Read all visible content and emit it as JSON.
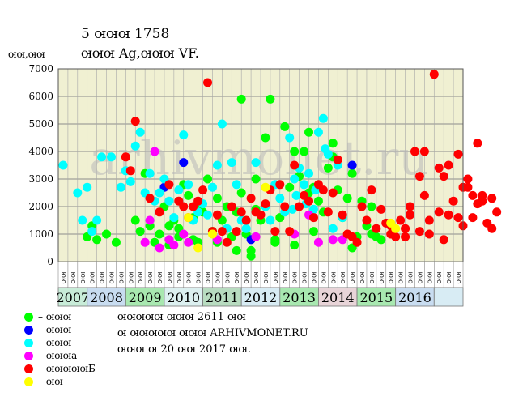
{
  "header": {
    "title_line1": "5 ꙕꙕꙕ 1758",
    "title_line2": "ꙕꙕꙕ Ag,ꙕꙕꙕ VF.",
    "y_unit": "ꙕꙕ,ꙕꙕ"
  },
  "watermark": "arhivmonet.ru",
  "legend": [
    {
      "label": "– ꙕꙕꙕ",
      "color": "#00ff00"
    },
    {
      "label": "– ꙕꙕꙕ",
      "color": "#0000ff"
    },
    {
      "label": "– ꙕꙕꙕ",
      "color": "#00ffff"
    },
    {
      "label": "– ꙕꙕꙕa",
      "color": "#ff00ff"
    },
    {
      "label": "– ꙕꙕꙕꙕꙕБ",
      "color": "#ff0000"
    },
    {
      "label": "– ꙕꙕ",
      "color": "#ffff00"
    }
  ],
  "info": {
    "line1": "ꙕꙕꙕꙕꙕ ꙕꙕꙕ 2611 ꙕꙕ",
    "line2": "ꙕ ꙕꙕꙕꙕꙕ ꙕꙕꙕ ARHIVMONET.RU",
    "line3": "ꙕꙕꙕ ꙕ 20 ꙕꙕ 2017 ꙕꙕ."
  },
  "chart_data": {
    "type": "scatter",
    "ylim": [
      0,
      7000
    ],
    "yticks": [
      0,
      1000,
      2000,
      3000,
      4000,
      5000,
      6000,
      7000
    ],
    "grid": true,
    "quarter_labels": [
      "ꙕꙕ",
      "ꙕꙕ",
      "ꙕꙕ",
      "ꙕꙕ",
      "ꙕꙕ",
      "ꙕꙕ",
      "ꙕꙕ",
      "ꙕꙕ",
      "ꙕꙕ",
      "ꙕꙕ",
      "ꙕꙕ",
      "ꙕꙕ",
      "ꙕꙕ",
      "ꙕꙕ",
      "ꙕꙕ",
      "ꙕꙕ",
      "ꙕꙕ",
      "ꙕꙕ",
      "ꙕꙕ",
      "ꙕꙕ",
      "ꙕꙕ",
      "ꙕꙕ",
      "ꙕꙕ",
      "ꙕꙕ",
      "ꙕꙕ",
      "ꙕꙕ",
      "ꙕꙕ",
      "ꙕꙕ",
      "ꙕꙕ",
      "ꙕꙕ",
      "ꙕꙕ",
      "ꙕꙕ",
      "ꙕꙕ",
      "ꙕꙕ",
      "ꙕꙕ",
      "ꙕꙕ",
      "ꙕꙕ",
      "ꙕꙕ",
      "ꙕꙕ",
      "ꙕꙕ",
      "ꙕꙕ",
      "ꙕꙕ"
    ],
    "years": [
      {
        "label": "2007",
        "quarters": 3,
        "color": "#c8ecd8"
      },
      {
        "label": "2008",
        "quarters": 4,
        "color": "#c8dcf0"
      },
      {
        "label": "2009",
        "quarters": 4,
        "color": "#a8e8b0"
      },
      {
        "label": "2010",
        "quarters": 4,
        "color": "#dcf0f0"
      },
      {
        "label": "2011",
        "quarters": 4,
        "color": "#b8dcc0"
      },
      {
        "label": "2012",
        "quarters": 4,
        "color": "#d8ecf4"
      },
      {
        "label": "2013",
        "quarters": 4,
        "color": "#a8e8b0"
      },
      {
        "label": "2014",
        "quarters": 4,
        "color": "#e8d4d8"
      },
      {
        "label": "2015",
        "quarters": 4,
        "color": "#a8e8b0"
      },
      {
        "label": "2016",
        "quarters": 4,
        "color": "#c8dcf0"
      },
      {
        "label": "",
        "quarters": 3,
        "color": "#d8ecf4"
      }
    ],
    "series": [
      {
        "color": "#00ff00",
        "points": [
          [
            2.5,
            900
          ],
          [
            3.0,
            1300
          ],
          [
            3.5,
            800
          ],
          [
            4.5,
            1000
          ],
          [
            5.5,
            700
          ],
          [
            7.5,
            1500
          ],
          [
            8.0,
            1100
          ],
          [
            8.5,
            3200
          ],
          [
            9.0,
            1300
          ],
          [
            9.5,
            700
          ],
          [
            10.0,
            1000
          ],
          [
            10.5,
            2000
          ],
          [
            11.0,
            600
          ],
          [
            11.5,
            1500
          ],
          [
            12.0,
            1200
          ],
          [
            12.5,
            2800
          ],
          [
            13.0,
            2400
          ],
          [
            13.5,
            1600
          ],
          [
            14.0,
            700
          ],
          [
            14.5,
            1800
          ],
          [
            15.0,
            3000
          ],
          [
            15.5,
            1100
          ],
          [
            16.0,
            700
          ],
          [
            16.5,
            1500
          ],
          [
            17.0,
            2000
          ],
          [
            17.5,
            900
          ],
          [
            18.0,
            1800
          ],
          [
            18.5,
            2500
          ],
          [
            19.0,
            1000
          ],
          [
            19.5,
            400
          ],
          [
            20.0,
            3000
          ],
          [
            20.5,
            1500
          ],
          [
            21.0,
            4500
          ],
          [
            21.5,
            5900
          ],
          [
            22.0,
            700
          ],
          [
            22.5,
            1600
          ],
          [
            23.0,
            4900
          ],
          [
            23.5,
            2700
          ],
          [
            24.0,
            600
          ],
          [
            24.5,
            3100
          ],
          [
            25.0,
            4000
          ],
          [
            25.5,
            2500
          ],
          [
            26.0,
            2700
          ],
          [
            26.5,
            2200
          ],
          [
            27.0,
            1800
          ],
          [
            27.5,
            3400
          ],
          [
            28.0,
            4300
          ],
          [
            28.5,
            2600
          ],
          [
            29.0,
            1600
          ],
          [
            29.5,
            2300
          ],
          [
            30.0,
            3200
          ],
          [
            30.5,
            900
          ],
          [
            31.0,
            2200
          ],
          [
            31.5,
            1300
          ],
          [
            32.0,
            2000
          ],
          [
            32.5,
            900
          ],
          [
            33.0,
            800
          ],
          [
            11.0,
            1300
          ],
          [
            12.0,
            900
          ],
          [
            14.0,
            1900
          ],
          [
            16.0,
            2300
          ],
          [
            18.0,
            400
          ],
          [
            20.0,
            1900
          ],
          [
            22.0,
            800
          ],
          [
            24.0,
            4000
          ],
          [
            26.0,
            1100
          ],
          [
            28.0,
            3800
          ],
          [
            30.0,
            500
          ],
          [
            32.0,
            1000
          ],
          [
            18.5,
            5900
          ],
          [
            25.5,
            4700
          ],
          [
            19.5,
            200
          ],
          [
            13.5,
            800
          ]
        ]
      },
      {
        "color": "#0000ff",
        "points": [
          [
            10.5,
            2700
          ],
          [
            12.5,
            3600
          ],
          [
            19.5,
            800
          ],
          [
            30.0,
            3500
          ]
        ]
      },
      {
        "color": "#00ffff",
        "points": [
          [
            0.0,
            3500
          ],
          [
            1.5,
            2500
          ],
          [
            2.0,
            1500
          ],
          [
            2.5,
            2700
          ],
          [
            3.0,
            1100
          ],
          [
            3.5,
            1500
          ],
          [
            4.0,
            3800
          ],
          [
            5.0,
            3800
          ],
          [
            6.0,
            2700
          ],
          [
            6.5,
            3300
          ],
          [
            7.0,
            2900
          ],
          [
            7.5,
            4200
          ],
          [
            8.0,
            4700
          ],
          [
            8.5,
            2500
          ],
          [
            9.0,
            3200
          ],
          [
            9.5,
            2200
          ],
          [
            10.0,
            2500
          ],
          [
            10.5,
            3000
          ],
          [
            11.0,
            2200
          ],
          [
            11.5,
            1600
          ],
          [
            12.0,
            2600
          ],
          [
            12.5,
            4600
          ],
          [
            13.0,
            2800
          ],
          [
            13.5,
            1500
          ],
          [
            14.0,
            1800
          ],
          [
            14.5,
            2100
          ],
          [
            15.0,
            1700
          ],
          [
            15.5,
            2700
          ],
          [
            16.0,
            3500
          ],
          [
            16.5,
            5000
          ],
          [
            17.0,
            1200
          ],
          [
            17.5,
            3600
          ],
          [
            18.0,
            2800
          ],
          [
            18.5,
            1500
          ],
          [
            19.0,
            1200
          ],
          [
            20.0,
            3600
          ],
          [
            21.0,
            2000
          ],
          [
            21.5,
            1500
          ],
          [
            22.0,
            2800
          ],
          [
            22.5,
            2300
          ],
          [
            23.0,
            1800
          ],
          [
            23.5,
            4500
          ],
          [
            24.0,
            3000
          ],
          [
            24.5,
            3400
          ],
          [
            25.0,
            2800
          ],
          [
            25.5,
            3200
          ],
          [
            26.0,
            1900
          ],
          [
            26.5,
            4700
          ],
          [
            27.0,
            5200
          ],
          [
            27.5,
            3900
          ],
          [
            28.0,
            1200
          ],
          [
            28.5,
            3500
          ],
          [
            29.0,
            1600
          ],
          [
            24.2,
            2400
          ],
          [
            25.2,
            2100
          ],
          [
            26.2,
            2600
          ],
          [
            27.2,
            4100
          ],
          [
            23.8,
            1900
          ]
        ]
      },
      {
        "color": "#ff00ff",
        "points": [
          [
            8.5,
            700
          ],
          [
            9.0,
            1500
          ],
          [
            9.5,
            4000
          ],
          [
            10.0,
            500
          ],
          [
            11.0,
            800
          ],
          [
            11.5,
            600
          ],
          [
            12.5,
            1000
          ],
          [
            13.0,
            700
          ],
          [
            16.0,
            800
          ],
          [
            20.0,
            900
          ],
          [
            24.0,
            1000
          ],
          [
            25.5,
            1700
          ],
          [
            26.5,
            700
          ],
          [
            28.0,
            800
          ],
          [
            29.0,
            800
          ]
        ]
      },
      {
        "color": "#ff0000",
        "points": [
          [
            6.5,
            3800
          ],
          [
            7.0,
            3300
          ],
          [
            7.5,
            5100
          ],
          [
            9.0,
            2300
          ],
          [
            10.0,
            1800
          ],
          [
            11.0,
            2800
          ],
          [
            12.0,
            2200
          ],
          [
            12.5,
            2000
          ],
          [
            13.0,
            1600
          ],
          [
            13.5,
            2000
          ],
          [
            14.0,
            2200
          ],
          [
            14.5,
            2600
          ],
          [
            15.0,
            6500
          ],
          [
            15.5,
            1100
          ],
          [
            16.0,
            1700
          ],
          [
            16.5,
            1100
          ],
          [
            17.0,
            700
          ],
          [
            17.5,
            2000
          ],
          [
            18.0,
            1100
          ],
          [
            18.5,
            1800
          ],
          [
            19.0,
            1500
          ],
          [
            19.5,
            2300
          ],
          [
            20.0,
            1800
          ],
          [
            20.5,
            1700
          ],
          [
            21.0,
            2100
          ],
          [
            21.5,
            2600
          ],
          [
            22.0,
            1100
          ],
          [
            22.5,
            2800
          ],
          [
            23.0,
            2000
          ],
          [
            23.5,
            1100
          ],
          [
            24.0,
            3500
          ],
          [
            24.5,
            2000
          ],
          [
            25.0,
            2400
          ],
          [
            25.5,
            2200
          ],
          [
            26.0,
            1600
          ],
          [
            26.5,
            2800
          ],
          [
            27.0,
            2600
          ],
          [
            27.5,
            1800
          ],
          [
            28.0,
            2500
          ],
          [
            28.5,
            3700
          ],
          [
            29.0,
            1700
          ],
          [
            29.5,
            1000
          ],
          [
            30.0,
            900
          ],
          [
            30.5,
            700
          ],
          [
            31.0,
            2000
          ],
          [
            31.5,
            1500
          ],
          [
            32.0,
            2600
          ],
          [
            32.5,
            1200
          ],
          [
            33.0,
            1900
          ],
          [
            33.5,
            1400
          ],
          [
            34.0,
            1000
          ],
          [
            34.5,
            900
          ],
          [
            35.0,
            1500
          ],
          [
            35.5,
            1200
          ],
          [
            36.0,
            2000
          ],
          [
            36.5,
            4000
          ],
          [
            37.0,
            3100
          ],
          [
            37.5,
            2400
          ],
          [
            38.0,
            1500
          ],
          [
            38.5,
            6800
          ],
          [
            39.0,
            1800
          ],
          [
            39.5,
            3100
          ],
          [
            40.0,
            3500
          ],
          [
            40.5,
            2200
          ],
          [
            41.0,
            1600
          ],
          [
            41.5,
            1300
          ],
          [
            42.0,
            2700
          ],
          [
            42.5,
            1600
          ],
          [
            43.0,
            4300
          ],
          [
            43.5,
            2200
          ],
          [
            44.0,
            1400
          ],
          [
            44.5,
            1200
          ],
          [
            45.0,
            1800
          ],
          [
            40.0,
            1700
          ],
          [
            38.0,
            1000
          ],
          [
            36.0,
            1700
          ],
          [
            34.0,
            1300
          ],
          [
            37.5,
            4000
          ],
          [
            39.0,
            3400
          ],
          [
            41.0,
            3900
          ],
          [
            43.0,
            2100
          ],
          [
            41.5,
            2700
          ],
          [
            39.5,
            800
          ],
          [
            37.0,
            1100
          ],
          [
            42.0,
            3000
          ],
          [
            44.5,
            2300
          ],
          [
            35.5,
            900
          ],
          [
            42.5,
            2400
          ],
          [
            43.5,
            2400
          ]
        ]
      },
      {
        "color": "#ffff00",
        "points": [
          [
            14.0,
            500
          ],
          [
            13.0,
            1600
          ],
          [
            15.5,
            1000
          ],
          [
            34.0,
            1400
          ],
          [
            34.5,
            1200
          ],
          [
            21.0,
            2700
          ]
        ]
      }
    ]
  }
}
